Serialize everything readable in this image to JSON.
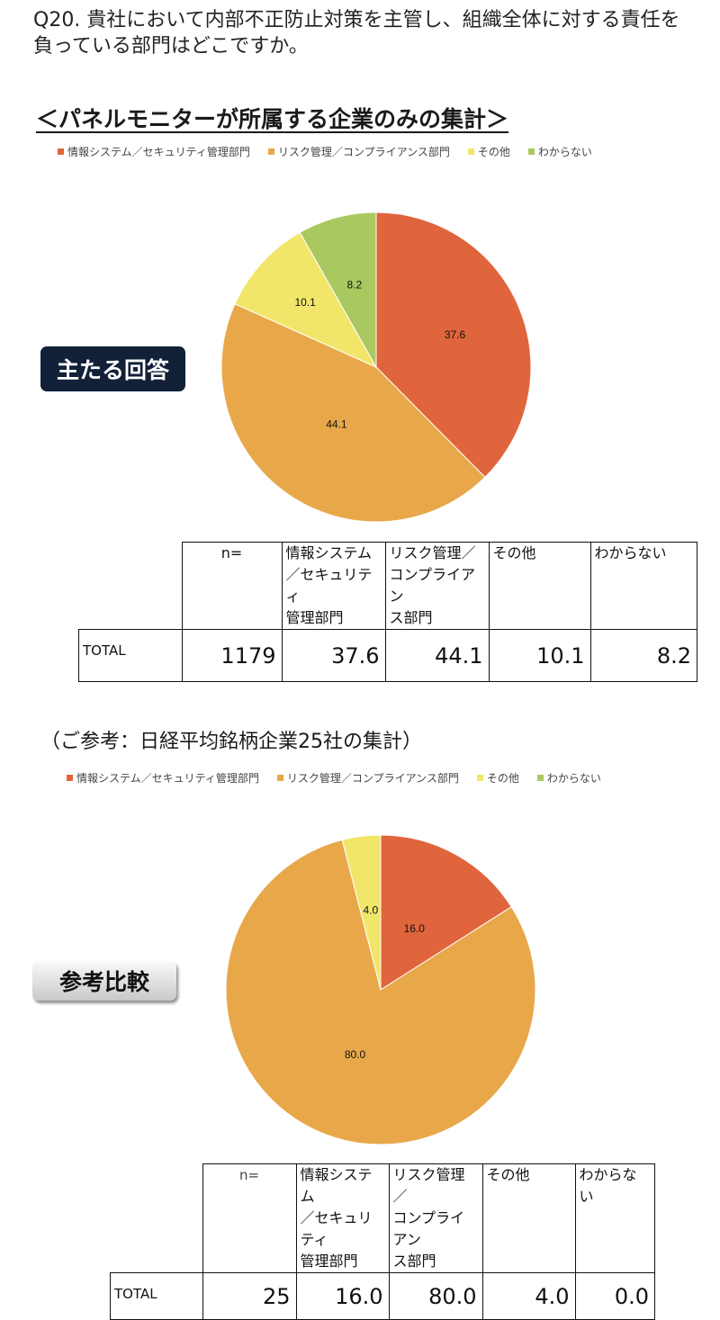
{
  "question": "Q20. 貴社において内部不正防止対策を主管し、組織全体に対する責任を負っている部門はどこですか。",
  "section1_title": "＜パネルモニターが所属する企業のみの集計＞",
  "section2_title": "（ご参考：日経平均銘柄企業25社の集計）",
  "badge_main": "主たる回答",
  "badge_ref": "参考比較",
  "colors": {
    "info_sys": "#E0653C",
    "risk": "#E8A84A",
    "other": "#F2E66A",
    "unknown": "#A9C85F"
  },
  "legend": [
    "情報システム／セキュリティ管理部門",
    "リスク管理／コンプライアンス部門",
    "その他",
    "わからない"
  ],
  "table_headers": [
    "情報システム\n／セキュリティ\n管理部門",
    "リスク管理／\nコンプライアン\nス部門",
    "その他",
    "わからない"
  ],
  "n_label": "n=",
  "chart_data": [
    {
      "type": "pie",
      "title": "＜パネルモニターが所属する企業のみの集計＞",
      "categories": [
        "情報システム／セキュリティ管理部門",
        "リスク管理／コンプライアンス部門",
        "その他",
        "わからない"
      ],
      "values": [
        37.6,
        44.1,
        10.1,
        8.2
      ],
      "labels": [
        "37.6",
        "44.1",
        "10.1",
        "8.2"
      ],
      "legend_position": "top",
      "table": {
        "row_label": "TOTAL",
        "n": "1179",
        "cells": [
          "37.6",
          "44.1",
          "10.1",
          "8.2"
        ]
      }
    },
    {
      "type": "pie",
      "title": "（ご参考：日経平均銘柄企業25社の集計）",
      "categories": [
        "情報システム／セキュリティ管理部門",
        "リスク管理／コンプライアンス部門",
        "その他",
        "わからない"
      ],
      "values": [
        16.0,
        80.0,
        4.0,
        0.0
      ],
      "labels": [
        "16.0",
        "80.0",
        "4.0",
        ""
      ],
      "legend_position": "top",
      "table": {
        "row_label": "TOTAL",
        "n": "25",
        "cells": [
          "16.0",
          "80.0",
          "4.0",
          "0.0"
        ]
      }
    }
  ]
}
